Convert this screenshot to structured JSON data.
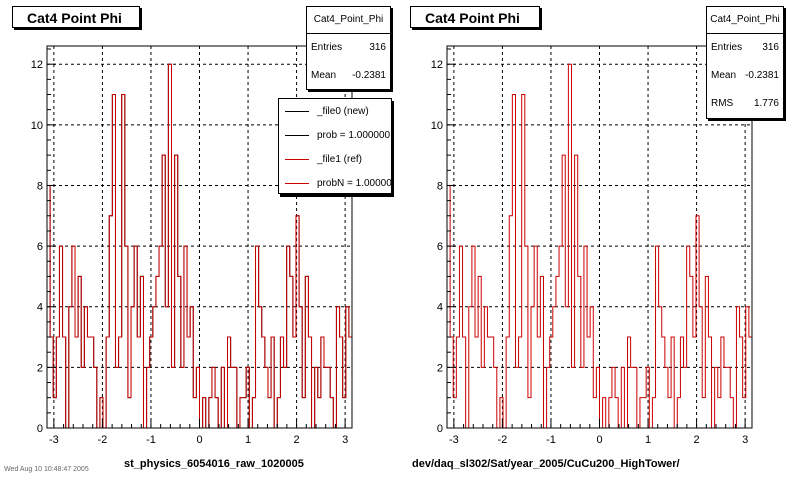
{
  "colors": {
    "new_line": "#000000",
    "ref_line": "#cc0000",
    "grid": "#000000"
  },
  "left_pad": {
    "title": "Cat4 Point Phi",
    "stats": {
      "name": "Cat4_Point_Phi",
      "entries_label": "Entries",
      "entries_value": "316",
      "mean_label": "Mean",
      "mean_value": "-0.2381"
    },
    "legend": [
      {
        "label": "_file0 (new)",
        "color": "#000000"
      },
      {
        "label": "prob = 1.000000",
        "color": "#000000"
      },
      {
        "label": "_file1 (ref)",
        "color": "#cc0000"
      },
      {
        "label": "probN = 1.000000",
        "color": "#cc0000"
      }
    ],
    "x_title": "st_physics_6054016_raw_1020005"
  },
  "right_pad": {
    "title": "Cat4 Point Phi",
    "stats": {
      "name": "Cat4_Point_Phi",
      "entries_label": "Entries",
      "entries_value": "316",
      "mean_label": "Mean",
      "mean_value": "-0.2381",
      "rms_label": "RMS",
      "rms_value": "1.776"
    },
    "x_title": "dev/daq_sl302/Sat/year_2005/CuCu200_HighTower/"
  },
  "corner_text": "Wed Aug 10 10:48:47 2005",
  "chart_data": [
    {
      "type": "histogram",
      "title": "Cat4 Point Phi",
      "xlabel": "st_physics_6054016_raw_1020005",
      "ylabel": "",
      "xlim": [
        -3.14159,
        3.14159
      ],
      "ylim": [
        0,
        12.6
      ],
      "x_ticks": [
        "-3",
        "-2",
        "-1",
        "0",
        "1",
        "2",
        "3"
      ],
      "y_ticks": [
        "0",
        "2",
        "4",
        "6",
        "8",
        "10",
        "12"
      ],
      "grid": true,
      "series": [
        {
          "name": "_file0 (new)",
          "values": [
            8,
            3,
            1,
            3,
            6,
            3,
            0,
            4,
            6,
            3,
            5,
            2,
            4,
            3,
            3,
            2,
            0,
            1,
            0,
            3,
            7,
            11,
            2,
            3,
            11,
            6,
            1,
            4,
            6,
            3,
            5,
            0,
            2,
            3,
            4,
            5,
            6,
            9,
            4,
            12,
            2,
            9,
            5,
            2,
            6,
            3,
            4,
            1,
            2,
            0,
            1,
            0,
            1,
            2,
            1,
            0,
            2,
            0,
            3,
            2,
            2,
            0,
            1,
            1,
            2,
            0,
            1,
            6,
            4,
            3,
            2,
            1,
            3,
            0,
            1,
            3,
            2,
            6,
            5,
            3,
            7,
            4,
            1,
            5,
            3,
            0,
            2,
            1,
            3,
            2,
            2,
            1,
            0,
            4,
            3,
            1,
            4,
            3
          ]
        },
        {
          "name": "_file1 (ref)",
          "values": [
            8,
            3,
            1,
            3,
            6,
            3,
            0,
            4,
            6,
            3,
            5,
            2,
            4,
            3,
            3,
            2,
            0,
            1,
            0,
            3,
            7,
            11,
            2,
            3,
            11,
            6,
            1,
            4,
            6,
            3,
            5,
            0,
            2,
            3,
            4,
            5,
            6,
            9,
            4,
            12,
            2,
            9,
            5,
            2,
            6,
            3,
            4,
            1,
            2,
            0,
            1,
            0,
            1,
            2,
            1,
            0,
            2,
            0,
            3,
            2,
            2,
            0,
            1,
            1,
            2,
            0,
            1,
            6,
            4,
            3,
            2,
            1,
            3,
            0,
            1,
            3,
            2,
            6,
            5,
            3,
            7,
            4,
            1,
            5,
            3,
            0,
            2,
            1,
            3,
            2,
            2,
            1,
            0,
            4,
            3,
            1,
            4,
            3
          ]
        }
      ]
    },
    {
      "type": "histogram",
      "title": "Cat4 Point Phi",
      "xlabel": "dev/daq_sl302/Sat/year_2005/CuCu200_HighTower/",
      "ylabel": "",
      "xlim": [
        -3.14159,
        3.14159
      ],
      "ylim": [
        0,
        12.6
      ],
      "x_ticks": [
        "-3",
        "-2",
        "-1",
        "0",
        "1",
        "2",
        "3"
      ],
      "y_ticks": [
        "0",
        "2",
        "4",
        "6",
        "8",
        "10",
        "12"
      ],
      "grid": true,
      "series": [
        {
          "name": "",
          "values": [
            8,
            3,
            1,
            3,
            6,
            3,
            0,
            4,
            6,
            3,
            5,
            2,
            4,
            3,
            3,
            2,
            0,
            1,
            0,
            3,
            7,
            11,
            2,
            3,
            11,
            6,
            1,
            4,
            6,
            3,
            5,
            0,
            2,
            3,
            4,
            5,
            6,
            9,
            4,
            12,
            2,
            9,
            5,
            2,
            6,
            3,
            4,
            1,
            2,
            0,
            1,
            0,
            1,
            2,
            1,
            0,
            2,
            0,
            3,
            2,
            2,
            0,
            1,
            1,
            2,
            0,
            1,
            6,
            4,
            3,
            2,
            1,
            3,
            0,
            1,
            3,
            2,
            6,
            5,
            3,
            7,
            4,
            1,
            5,
            3,
            0,
            2,
            1,
            3,
            2,
            2,
            1,
            0,
            4,
            3,
            1,
            4,
            3
          ]
        }
      ]
    }
  ]
}
